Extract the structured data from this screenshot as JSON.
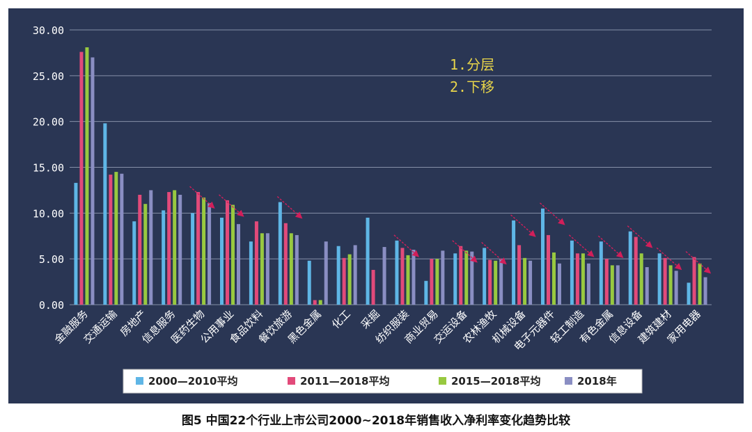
{
  "caption": "图5 中国22个行业上市公司2000~2018年销售收入净利率变化趋势比较",
  "annotations": [
    "1.分层",
    "2.下移"
  ],
  "colors": {
    "background": "#2a3654",
    "grid": "#8791a9",
    "axis_text": "#ffffff",
    "annotation_text": "#e8d54a",
    "arrow": "#d11f5a",
    "legend_bg": "#ffffff",
    "legend_text": "#222222"
  },
  "chart_data": {
    "type": "bar",
    "title": "",
    "xlabel": "",
    "ylabel": "",
    "ylim": [
      0,
      30
    ],
    "yticks": [
      "0.00",
      "5.00",
      "10.00",
      "15.00",
      "20.00",
      "25.00",
      "30.00"
    ],
    "grid": true,
    "legend_position": "bottom",
    "categories": [
      "金融服务",
      "交通运输",
      "房地产",
      "信息服务",
      "医药生物",
      "公用事业",
      "食品饮料",
      "餐饮旅游",
      "黑色金属",
      "化工",
      "采掘",
      "纺织服装",
      "商业贸易",
      "交运设备",
      "农林渔牧",
      "机械设备",
      "电子元器件",
      "轻工制造",
      "有色金属",
      "信息设备",
      "建筑建材",
      "家用电器"
    ],
    "series": [
      {
        "name": "2000—2010平均",
        "color": "#5fb6e6",
        "values": [
          13.3,
          19.8,
          9.1,
          10.3,
          10.0,
          9.5,
          6.9,
          11.2,
          4.8,
          6.4,
          9.5,
          7.0,
          2.6,
          5.6,
          6.2,
          9.2,
          10.5,
          7.0,
          6.9,
          8.0,
          5.6,
          2.4
        ]
      },
      {
        "name": "2011—2018平均",
        "color": "#e24a7a",
        "values": [
          27.6,
          14.2,
          12.0,
          12.3,
          12.3,
          11.4,
          9.1,
          8.9,
          0.5,
          5.1,
          3.8,
          6.2,
          5.0,
          6.4,
          4.9,
          6.5,
          7.6,
          5.6,
          5.0,
          7.4,
          5.1,
          5.2
        ]
      },
      {
        "name": "2015—2018平均",
        "color": "#98c940",
        "values": [
          28.1,
          14.5,
          11.0,
          12.5,
          11.7,
          10.9,
          7.8,
          7.8,
          0.5,
          5.5,
          0.0,
          5.4,
          5.0,
          5.9,
          4.8,
          5.1,
          5.7,
          5.6,
          4.3,
          5.6,
          4.3,
          4.5
        ]
      },
      {
        "name": "2018年",
        "color": "#8a8ec3",
        "values": [
          27.0,
          14.3,
          12.5,
          12.0,
          11.1,
          8.8,
          7.8,
          7.6,
          6.9,
          6.5,
          6.3,
          6.0,
          5.9,
          5.8,
          5.0,
          4.8,
          4.5,
          4.5,
          4.3,
          4.1,
          3.7,
          3.0
        ]
      }
    ]
  }
}
